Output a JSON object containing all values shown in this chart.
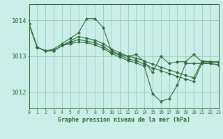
{
  "background_color": "#cceee8",
  "grid_color": "#99ccbb",
  "line_color": "#2d6b3a",
  "title": "Graphe pression niveau de la mer (hPa)",
  "xlabel_ticks": [
    0,
    1,
    2,
    3,
    4,
    5,
    6,
    7,
    8,
    9,
    10,
    11,
    12,
    13,
    14,
    15,
    16,
    17,
    18,
    19,
    20,
    21,
    22,
    23
  ],
  "yticks": [
    1012,
    1013,
    1014
  ],
  "ylim": [
    1011.55,
    1014.45
  ],
  "xlim": [
    0,
    23
  ],
  "series": [
    [
      1013.9,
      1013.25,
      1013.15,
      1013.2,
      1013.35,
      1013.5,
      1013.65,
      1014.05,
      1014.05,
      1013.8,
      1013.15,
      1013.05,
      1013.0,
      1013.05,
      1012.85,
      1012.55,
      1013.0,
      1012.8,
      1012.85,
      1012.85,
      1013.05,
      1012.85,
      1012.85,
      1012.85
    ],
    [
      1013.9,
      1013.25,
      1013.15,
      1013.15,
      1013.3,
      1013.42,
      1013.55,
      1013.5,
      1013.45,
      1013.35,
      1013.2,
      1013.1,
      1013.0,
      1012.95,
      1012.87,
      1012.78,
      1012.7,
      1012.62,
      1012.55,
      1012.47,
      1012.4,
      1012.87,
      1012.85,
      1012.82
    ],
    [
      1013.9,
      1013.25,
      1013.15,
      1013.15,
      1013.3,
      1013.38,
      1013.47,
      1013.42,
      1013.38,
      1013.28,
      1013.12,
      1013.03,
      1012.93,
      1012.88,
      1012.78,
      1012.68,
      1012.6,
      1012.52,
      1012.44,
      1012.37,
      1012.3,
      1012.82,
      1012.8,
      1012.77
    ],
    [
      1013.9,
      1013.25,
      1013.15,
      1013.15,
      1013.3,
      1013.35,
      1013.4,
      1013.38,
      1013.32,
      1013.22,
      1013.08,
      1012.98,
      1012.88,
      1012.82,
      1012.72,
      1011.95,
      1011.75,
      1011.82,
      1012.2,
      1012.8,
      1012.8,
      1012.8,
      1012.8,
      1012.75
    ]
  ],
  "marker": "D",
  "markersize": 2.0,
  "linewidth": 0.8
}
